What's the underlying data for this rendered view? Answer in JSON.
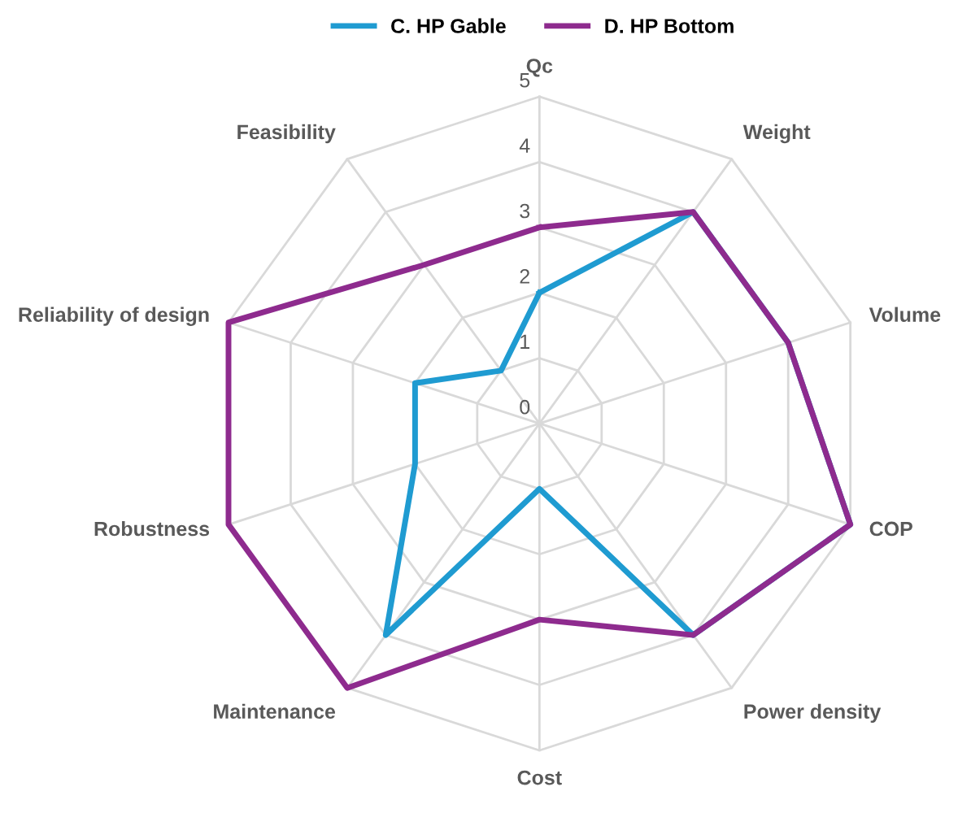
{
  "chart_data": {
    "type": "radar",
    "categories": [
      "Qc",
      "Weight",
      "Volume",
      "COP",
      "Power density",
      "Cost",
      "Maintenance",
      "Robustness",
      "Reliability of design",
      "Feasibility"
    ],
    "series": [
      {
        "name": "C. HP Gable",
        "color": "#1f9bd1",
        "values": [
          2,
          4,
          4,
          5,
          4,
          1,
          4,
          2,
          2,
          1
        ]
      },
      {
        "name": "D. HP Bottom",
        "color": "#8e2b8e",
        "values": [
          3,
          4,
          4,
          5,
          4,
          3,
          5,
          5,
          5,
          3
        ]
      }
    ],
    "ylim": [
      0,
      5
    ],
    "yticks": [
      0,
      1,
      2,
      3,
      4,
      5
    ],
    "grid": true,
    "legend": "top",
    "marker": "none",
    "line_style": "solid"
  }
}
